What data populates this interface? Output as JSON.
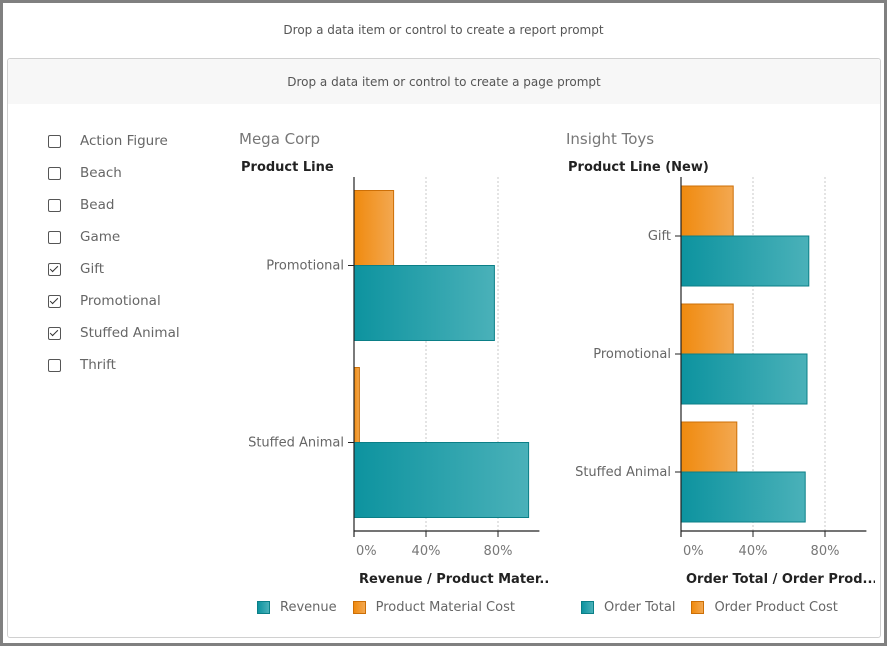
{
  "report_prompt": "Drop a data item or control to create a report prompt",
  "page_prompt": "Drop a data item or control to create a page prompt",
  "filter_list": [
    {
      "label": "Action Figure",
      "checked": false
    },
    {
      "label": "Beach",
      "checked": false
    },
    {
      "label": "Bead",
      "checked": false
    },
    {
      "label": "Game",
      "checked": false
    },
    {
      "label": "Gift",
      "checked": true
    },
    {
      "label": "Promotional",
      "checked": true
    },
    {
      "label": "Stuffed Animal",
      "checked": true
    },
    {
      "label": "Thrift",
      "checked": false
    }
  ],
  "colors": {
    "teal": "#0d939f",
    "orange": "#f08a0e"
  },
  "chart_data": [
    {
      "type": "bar",
      "orientation": "horizontal",
      "title": "Mega Corp",
      "category_title": "Product Line",
      "categories": [
        "Promotional",
        "Stuffed Animal"
      ],
      "series": [
        {
          "name": "Product Material Cost",
          "color": "#f08a0e",
          "values": [
            22,
            3
          ]
        },
        {
          "name": "Revenue",
          "color": "#0d939f",
          "values": [
            78,
            97
          ]
        }
      ],
      "xlabel": "Revenue / Product Mater...",
      "xticks": [
        "0%",
        "40%",
        "80%"
      ],
      "xlim": [
        0,
        103
      ],
      "grid": true,
      "legend": [
        {
          "name": "Revenue",
          "swatch": "teal"
        },
        {
          "name": "Product Material Cost",
          "swatch": "orange"
        }
      ],
      "legend_position": "bottom"
    },
    {
      "type": "bar",
      "orientation": "horizontal",
      "title": "Insight Toys",
      "category_title": "Product Line (New)",
      "categories": [
        "Gift",
        "Promotional",
        "Stuffed Animal"
      ],
      "series": [
        {
          "name": "Order Product Cost",
          "color": "#f08a0e",
          "values": [
            29,
            29,
            31
          ]
        },
        {
          "name": "Order Total",
          "color": "#0d939f",
          "values": [
            71,
            70,
            69
          ]
        }
      ],
      "xlabel": "Order Total / Order Prod...",
      "xticks": [
        "0%",
        "40%",
        "80%"
      ],
      "xlim": [
        0,
        103
      ],
      "grid": true,
      "legend": [
        {
          "name": "Order Total",
          "swatch": "teal"
        },
        {
          "name": "Order Product Cost",
          "swatch": "orange"
        }
      ],
      "legend_position": "bottom"
    }
  ]
}
